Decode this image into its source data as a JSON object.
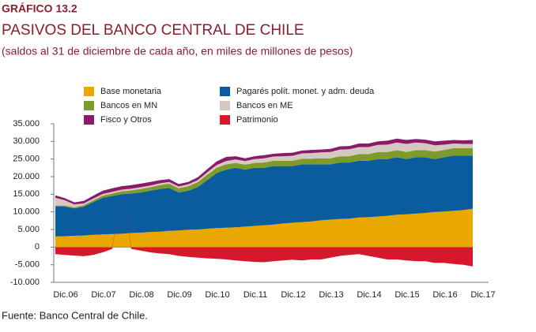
{
  "chart_data": {
    "type": "stacked_area",
    "kicker": "GRÁFICO 13.2",
    "title": "PASIVOS DEL BANCO CENTRAL DE CHILE",
    "subtitle": "(saldos al 31 de diciembre de cada año, en miles de millones de pesos)",
    "source": "Fuente: Banco Central de Chile.",
    "categories": [
      "Dic.06",
      null,
      null,
      null,
      "Dic.07",
      null,
      null,
      null,
      "Dic.08",
      null,
      null,
      null,
      "Dic.09",
      null,
      null,
      null,
      "Dic.10",
      null,
      null,
      null,
      "Dic.11",
      null,
      null,
      null,
      "Dic.12",
      null,
      null,
      null,
      "Dic.13",
      null,
      null,
      null,
      "Dic.14",
      null,
      null,
      null,
      "Dic.15",
      null,
      null,
      null,
      "Dic.16",
      null,
      null,
      null,
      "Dic.17"
    ],
    "series": [
      {
        "name": "Base monetaria",
        "color": "#e8a800",
        "values": [
          3000,
          3100,
          3200,
          3300,
          3500,
          3600,
          3700,
          3800,
          4000,
          4100,
          4300,
          4400,
          4600,
          4700,
          4900,
          5000,
          5200,
          5400,
          5500,
          5600,
          5800,
          6000,
          6200,
          6400,
          6700,
          6900,
          7100,
          7300,
          7600,
          7800,
          8000,
          8100,
          8400,
          8500,
          8700,
          8900,
          9200,
          9300,
          9500,
          9700,
          10000,
          10100,
          10300,
          10500,
          10900
        ]
      },
      {
        "name": "Pagarés polít. monet. y adm. deuda",
        "color": "#0b5c9e",
        "values": [
          8500,
          8400,
          7800,
          8200,
          9300,
          10400,
          10800,
          11200,
          11200,
          11400,
          11700,
          12100,
          12200,
          10800,
          11100,
          12000,
          13800,
          15600,
          16500,
          16900,
          16200,
          16500,
          16300,
          16600,
          16300,
          16100,
          16400,
          16200,
          15900,
          15700,
          16000,
          15900,
          16100,
          16000,
          16300,
          16100,
          16300,
          15700,
          16000,
          15800,
          15000,
          15400,
          15700,
          15500,
          15100
        ]
      },
      {
        "name": "Bancos en MN",
        "color": "#7d9b2a",
        "values": [
          300,
          300,
          300,
          400,
          500,
          600,
          700,
          800,
          900,
          1000,
          1000,
          1100,
          1200,
          1200,
          1300,
          1400,
          1500,
          1500,
          1500,
          1400,
          1400,
          1400,
          1500,
          1500,
          1500,
          1500,
          1600,
          1600,
          1700,
          1700,
          1800,
          1800,
          1900,
          1900,
          2000,
          2000,
          2000,
          2000,
          2000,
          2000,
          2100,
          2100,
          2100,
          2100,
          2100
        ]
      },
      {
        "name": "Bancos en ME",
        "color": "#d5c8c0",
        "values": [
          2200,
          1500,
          800,
          500,
          500,
          500,
          500,
          500,
          500,
          500,
          500,
          500,
          500,
          500,
          500,
          600,
          700,
          800,
          900,
          1000,
          1000,
          1100,
          1200,
          1200,
          1300,
          1400,
          1500,
          1600,
          1700,
          1800,
          1900,
          2000,
          2000,
          2000,
          2000,
          2100,
          2200,
          2300,
          2200,
          2000,
          1800,
          1500,
          1300,
          1200,
          1200
        ]
      },
      {
        "name": "Fisco y Otros",
        "color": "#8c1a6a",
        "values": [
          700,
          600,
          600,
          700,
          800,
          900,
          1000,
          1000,
          1000,
          1000,
          1000,
          900,
          800,
          700,
          700,
          800,
          900,
          1000,
          1200,
          900,
          800,
          800,
          900,
          800,
          900,
          900,
          800,
          900,
          800,
          900,
          900,
          900,
          1000,
          1000,
          1000,
          1100,
          1100,
          1100,
          1000,
          1000,
          1100,
          1100,
          1000,
          1000,
          1100
        ]
      },
      {
        "name": "Patrimonio",
        "color": "#d7182a",
        "values": [
          -2000,
          -2200,
          -2400,
          -2600,
          -2200,
          -1500,
          -500,
          300,
          -500,
          -1000,
          -1500,
          -1800,
          -2000,
          -2500,
          -2800,
          -3000,
          -3200,
          -3300,
          -3500,
          -3800,
          -4000,
          -4200,
          -4300,
          -4000,
          -3800,
          -3600,
          -3800,
          -3500,
          -3500,
          -3000,
          -2500,
          -2200,
          -2000,
          -2500,
          -3000,
          -3500,
          -3500,
          -3800,
          -4000,
          -4000,
          -4500,
          -4500,
          -4800,
          -5000,
          -5500
        ]
      }
    ],
    "ylim": [
      -10000,
      35000
    ],
    "yticks": [
      {
        "value": -10000,
        "label": "-10.000"
      },
      {
        "value": -5000,
        "label": "-5.000"
      },
      0,
      {
        "value": 5000,
        "label": "5.000"
      },
      {
        "value": 10000,
        "label": "10.000"
      },
      {
        "value": 15000,
        "label": "15.000"
      },
      {
        "value": 20000,
        "label": "20.000"
      },
      {
        "value": 25000,
        "label": "25.000"
      },
      {
        "value": 30000,
        "label": "30.000"
      },
      {
        "value": 35000,
        "label": "35.000"
      }
    ]
  }
}
